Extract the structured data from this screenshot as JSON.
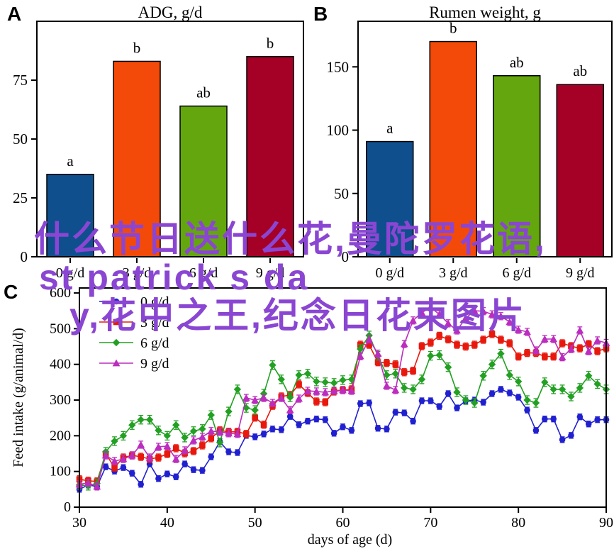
{
  "overlay": {
    "color": "#8a46d2",
    "lines": [
      "什么节日送什么花,曼陀罗花语,",
      "st patrick s da",
      "y,花中之王,纪念日花束图片"
    ]
  },
  "chart_data": [
    {
      "type": "bar",
      "panel": "A",
      "title": "ADG, g/d",
      "categories": [
        "0 g/d",
        "3 g/d",
        "6 g/d",
        "9 g/d"
      ],
      "values": [
        35,
        83,
        64,
        85
      ],
      "sig_labels": [
        "a",
        "b",
        "ab",
        "b"
      ],
      "bar_colors": [
        "#0f4f8e",
        "#f34a09",
        "#64a60e",
        "#a50026"
      ],
      "y_ticks": [
        0,
        25,
        50,
        75
      ],
      "ylim": [
        0,
        100
      ],
      "grid": false
    },
    {
      "type": "bar",
      "panel": "B",
      "title": "Rumen weight, g",
      "categories": [
        "0 g/d",
        "3 g/d",
        "6 g/d",
        "9 g/d"
      ],
      "values": [
        91,
        170,
        143,
        136
      ],
      "sig_labels": [
        "a",
        "b",
        "ab",
        "ab"
      ],
      "bar_colors": [
        "#0f4f8e",
        "#f34a09",
        "#64a60e",
        "#a50026"
      ],
      "y_ticks": [
        0,
        50,
        100,
        150
      ],
      "ylim": [
        0,
        186
      ],
      "grid": false
    },
    {
      "type": "line",
      "panel": "C",
      "xlabel": "days of age (d)",
      "ylabel": "Feed intake (g/animal/d)",
      "x_ticks": [
        30,
        40,
        50,
        60,
        70,
        80,
        90
      ],
      "y_ticks": [
        0,
        100,
        200,
        300,
        400,
        500,
        600
      ],
      "xlim": [
        30,
        90
      ],
      "ylim": [
        0,
        614
      ],
      "x_start": 30,
      "x_step": 1,
      "grid": false,
      "legend_position": "top-left",
      "series": [
        {
          "name": "0 g/d",
          "color": "#2020d0",
          "marker": "circle",
          "err": 8,
          "values": [
            50,
            62,
            58,
            113,
            101,
            111,
            95,
            64,
            121,
            80,
            93,
            85,
            121,
            105,
            103,
            141,
            183,
            155,
            153,
            201,
            197,
            205,
            219,
            217,
            254,
            231,
            241,
            247,
            245,
            207,
            225,
            215,
            290,
            292,
            221,
            219,
            266,
            264,
            241,
            298,
            298,
            282,
            318,
            278,
            298,
            300,
            294,
            318,
            330,
            320,
            308,
            272,
            215,
            247,
            247,
            189,
            201,
            253,
            233,
            245,
            245
          ]
        },
        {
          "name": "3 g/d",
          "color": "#e8180c",
          "marker": "square",
          "err": 10,
          "values": [
            78,
            74,
            72,
            149,
            111,
            139,
            145,
            141,
            135,
            139,
            149,
            165,
            151,
            157,
            173,
            193,
            215,
            211,
            211,
            205,
            251,
            231,
            284,
            310,
            314,
            344,
            320,
            296,
            294,
            324,
            328,
            330,
            455,
            455,
            406,
            404,
            400,
            378,
            382,
            451,
            461,
            480,
            470,
            455,
            450,
            455,
            469,
            485,
            469,
            459,
            422,
            432,
            432,
            422,
            422,
            459,
            451,
            445,
            457,
            437,
            445
          ]
        },
        {
          "name": "6 g/d",
          "color": "#22a022",
          "marker": "diamond",
          "err": 12,
          "values": [
            62,
            60,
            66,
            155,
            185,
            200,
            230,
            245,
            245,
            215,
            200,
            230,
            195,
            213,
            219,
            258,
            181,
            268,
            330,
            278,
            272,
            318,
            398,
            358,
            308,
            370,
            374,
            352,
            350,
            348,
            356,
            358,
            443,
            481,
            424,
            370,
            374,
            334,
            330,
            358,
            424,
            426,
            392,
            322,
            300,
            292,
            368,
            400,
            430,
            370,
            352,
            300,
            292,
            350,
            330,
            330,
            310,
            334,
            368,
            345,
            330
          ]
        },
        {
          "name": "9 g/d",
          "color": "#bb2dbe",
          "marker": "triangle",
          "err": 10,
          "values": [
            64,
            68,
            58,
            145,
            129,
            135,
            145,
            175,
            139,
            169,
            171,
            135,
            159,
            187,
            197,
            213,
            211,
            207,
            205,
            306,
            300,
            306,
            292,
            306,
            272,
            304,
            326,
            324,
            322,
            326,
            328,
            326,
            423,
            470,
            430,
            340,
            328,
            457,
            523,
            545,
            560,
            540,
            515,
            495,
            530,
            550,
            549,
            540,
            535,
            519,
            497,
            491,
            439,
            471,
            471,
            420,
            443,
            495,
            437,
            467,
            460
          ]
        }
      ]
    }
  ]
}
